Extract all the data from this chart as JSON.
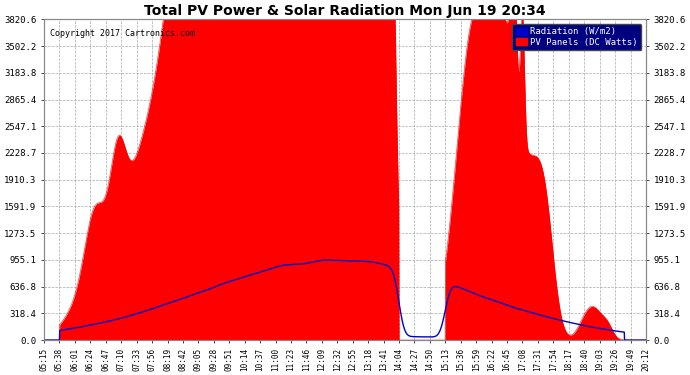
{
  "title": "Total PV Power & Solar Radiation Mon Jun 19 20:34",
  "copyright": "Copyright 2017 Cartronics.com",
  "background_color": "#ffffff",
  "plot_bg_color": "#ffffff",
  "grid_color": "#aaaaaa",
  "yticks": [
    0.0,
    318.4,
    636.8,
    955.1,
    1273.5,
    1591.9,
    1910.3,
    2228.7,
    2547.1,
    2865.4,
    3183.8,
    3502.2,
    3820.6
  ],
  "ymax": 3820.6,
  "legend_labels": [
    "Radiation (W/m2)",
    "PV Panels (DC Watts)"
  ],
  "legend_colors": [
    "#0000cc",
    "#ff0000"
  ],
  "pv_color": "#ff0000",
  "rad_color": "#0000cc",
  "legend_bg": "#000080",
  "xtick_labels": [
    "05:15",
    "05:38",
    "06:01",
    "06:24",
    "06:47",
    "07:10",
    "07:33",
    "07:56",
    "08:19",
    "08:42",
    "09:05",
    "09:28",
    "09:51",
    "10:14",
    "10:37",
    "11:00",
    "11:23",
    "11:46",
    "12:09",
    "12:32",
    "12:55",
    "13:18",
    "13:41",
    "14:04",
    "14:27",
    "14:50",
    "15:13",
    "15:36",
    "15:59",
    "16:22",
    "16:45",
    "17:08",
    "17:31",
    "17:54",
    "18:17",
    "18:40",
    "19:03",
    "19:26",
    "19:49",
    "20:12"
  ]
}
